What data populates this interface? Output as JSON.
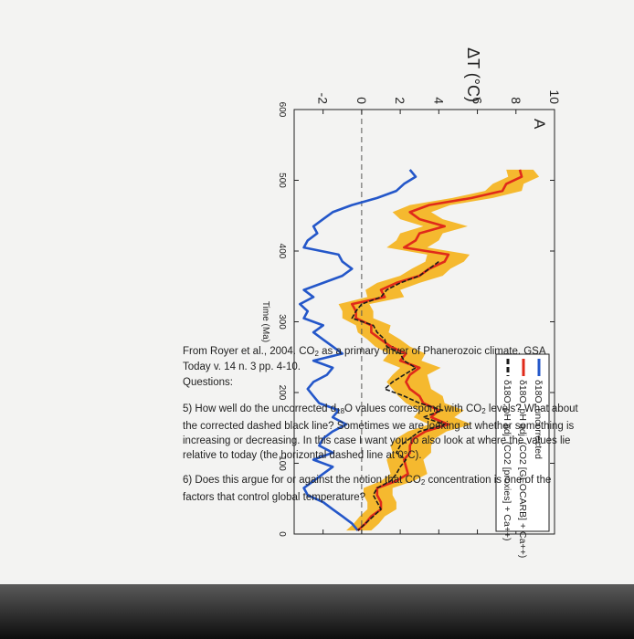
{
  "chart_data": {
    "type": "line",
    "panel_label": "A",
    "ylabel": "ΔT (°C)",
    "xlabel": "Time (Ma)",
    "x_ticks": [
      600,
      500,
      400,
      300,
      200,
      100,
      0
    ],
    "y_ticks": [
      10,
      8,
      6,
      4,
      2,
      0,
      -2
    ],
    "xlim": [
      600,
      0
    ],
    "ylim": [
      -3.5,
      10
    ],
    "reference_line": {
      "y": 0,
      "style": "dashed"
    },
    "legend": {
      "position": "top-right",
      "entries": [
        "δ18O, uncorrected",
        "δ18O, pH adj. (CO2 [GEOCARB] + Ca++)",
        "δ18O, pH adj. (CO2 [proxies] + Ca++)"
      ]
    },
    "series": [
      {
        "name": "δ18O, uncorrected",
        "color": "#2457c9",
        "x": [
          515,
          505,
          495,
          485,
          475,
          465,
          455,
          445,
          435,
          425,
          415,
          405,
          395,
          385,
          375,
          365,
          355,
          345,
          335,
          325,
          315,
          305,
          295,
          285,
          275,
          265,
          255,
          245,
          235,
          225,
          215,
          205,
          195,
          185,
          175,
          165,
          155,
          145,
          135,
          125,
          115,
          105,
          95,
          85,
          75,
          65,
          55,
          45,
          35,
          25,
          15,
          5
        ],
        "y": [
          2.5,
          2.8,
          2.2,
          1.8,
          0.8,
          -0.5,
          -1.5,
          -2.0,
          -2.5,
          -2.3,
          -2.8,
          -3.0,
          -1.2,
          -1.0,
          -0.5,
          -1.0,
          -2.0,
          -3.0,
          -2.5,
          -3.2,
          -2.8,
          -3.0,
          -2.0,
          -2.5,
          -2.0,
          -1.5,
          -1.0,
          -2.5,
          -1.5,
          -1.8,
          -2.5,
          -2.8,
          -2.5,
          -2.2,
          -1.2,
          -1.5,
          -0.8,
          -1.5,
          -2.0,
          -2.2,
          -1.5,
          -2.5,
          -1.5,
          -2.0,
          -2.5,
          -3.0,
          -2.8,
          -2.0,
          -1.5,
          -1.0,
          -0.5,
          -0.2
        ]
      },
      {
        "name": "δ18O, pH adj. (CO2 [GEOCARB] + Ca++)",
        "color": "#e02a1a",
        "x": [
          515,
          505,
          495,
          485,
          475,
          465,
          455,
          445,
          435,
          425,
          415,
          405,
          395,
          385,
          375,
          365,
          355,
          345,
          335,
          325,
          315,
          305,
          295,
          285,
          275,
          265,
          255,
          245,
          235,
          225,
          215,
          205,
          195,
          185,
          175,
          165,
          155,
          145,
          135,
          125,
          115,
          105,
          95,
          85,
          75,
          65,
          55,
          45,
          35,
          25,
          15,
          5
        ],
        "y": [
          8.2,
          8.3,
          7.5,
          7.3,
          5.7,
          3.5,
          2.5,
          3.0,
          4.3,
          3.0,
          2.8,
          2.2,
          4.5,
          4.3,
          3.5,
          3.0,
          1.8,
          1.0,
          1.2,
          -0.5,
          -0.3,
          -0.3,
          0.5,
          0.5,
          1.0,
          1.5,
          2.3,
          2.0,
          3.0,
          2.5,
          2.3,
          2.5,
          3.0,
          3.2,
          4.0,
          3.6,
          4.5,
          3.3,
          2.7,
          2.5,
          2.5,
          2.2,
          2.3,
          2.4,
          1.8,
          0.8,
          0.8,
          1.0,
          1.0,
          0.5,
          0.2,
          -0.2
        ]
      },
      {
        "name": "δ18O, pH adj. (CO2 [proxies] + Ca++)",
        "color": "#1a1a1a",
        "dashed": true,
        "x": [
          385,
          375,
          365,
          355,
          345,
          335,
          325,
          315,
          305,
          295,
          285,
          275,
          265,
          255,
          245,
          235,
          225,
          215,
          205,
          195,
          185,
          175,
          165,
          155,
          145,
          135,
          125,
          115,
          105,
          95,
          85,
          75,
          65,
          55,
          45,
          35,
          25,
          15,
          5
        ],
        "y": [
          4.0,
          3.5,
          3.0,
          2.0,
          1.3,
          1.0,
          0.0,
          -0.3,
          -0.5,
          0.6,
          0.8,
          1.2,
          1.3,
          2.0,
          2.2,
          2.8,
          2.2,
          1.6,
          1.2,
          2.2,
          3.0,
          4.2,
          3.2,
          4.3,
          3.0,
          2.5,
          2.0,
          1.8,
          2.3,
          2.0,
          1.8,
          1.5,
          0.8,
          0.6,
          0.8,
          1.0,
          0.6,
          0.2,
          -0.2
        ]
      }
    ],
    "band": {
      "x": [
        515,
        505,
        495,
        485,
        475,
        465,
        455,
        445,
        435,
        425,
        415,
        405,
        395,
        385,
        375,
        365,
        355,
        345,
        335,
        325,
        315,
        305,
        295,
        285,
        275,
        265,
        255,
        245,
        235,
        225,
        215,
        205,
        195,
        185,
        175,
        165,
        155,
        145,
        135,
        125,
        115,
        105,
        95,
        85,
        75,
        65,
        55,
        45,
        35,
        25,
        15,
        5
      ],
      "lower": [
        7.5,
        7.6,
        6.8,
        6.4,
        4.7,
        2.5,
        1.6,
        2.0,
        3.2,
        2.0,
        1.8,
        1.3,
        3.4,
        3.3,
        2.6,
        2.0,
        0.8,
        0.2,
        0.3,
        -1.2,
        -1.0,
        -1.0,
        -0.3,
        -0.2,
        0.3,
        0.7,
        1.4,
        1.1,
        2.0,
        1.6,
        1.3,
        1.6,
        1.9,
        2.3,
        3.0,
        2.7,
        3.5,
        2.4,
        1.8,
        1.5,
        1.6,
        1.3,
        1.4,
        1.5,
        1.0,
        0.1,
        0.1,
        0.3,
        0.3,
        -0.1,
        -0.4,
        -0.8
      ],
      "upper": [
        8.9,
        9.2,
        8.4,
        8.3,
        6.8,
        4.6,
        3.6,
        4.2,
        5.5,
        4.2,
        4.0,
        3.4,
        5.6,
        5.3,
        4.6,
        4.2,
        3.0,
        2.0,
        2.2,
        0.4,
        0.6,
        0.6,
        1.5,
        1.4,
        2.0,
        2.5,
        3.3,
        3.1,
        4.1,
        3.4,
        3.5,
        3.6,
        4.2,
        4.3,
        5.3,
        4.8,
        5.7,
        4.4,
        3.8,
        3.6,
        3.6,
        3.2,
        3.3,
        3.4,
        2.7,
        1.6,
        1.6,
        1.8,
        1.8,
        1.2,
        0.9,
        0.5
      ],
      "color": "#f5b21a"
    }
  },
  "caption": {
    "part1": "From Royer et al., 2004. CO",
    "sub": "2",
    "part2": " as a primary driver of Phanerozoic climate. GSA Today v. 14 n. 3 pp. 4-10."
  },
  "questions_heading": "Questions:",
  "q5": {
    "a": "5) How well do the uncorrected d",
    "sup": "18",
    "b": "O values correspond with CO",
    "sub": "2",
    "c": " levels? What about the corrected dashed black line? Sometimes we are looking at whether something is increasing or decreasing. In this case I want you to also look at where the values lie relative to today (the horizontal dashed line at 0°C)."
  },
  "q6": {
    "a": "6) Does this argue for or against the notion that CO",
    "sub": "2",
    "b": " concentration is one of the factors that control global temperature?"
  }
}
